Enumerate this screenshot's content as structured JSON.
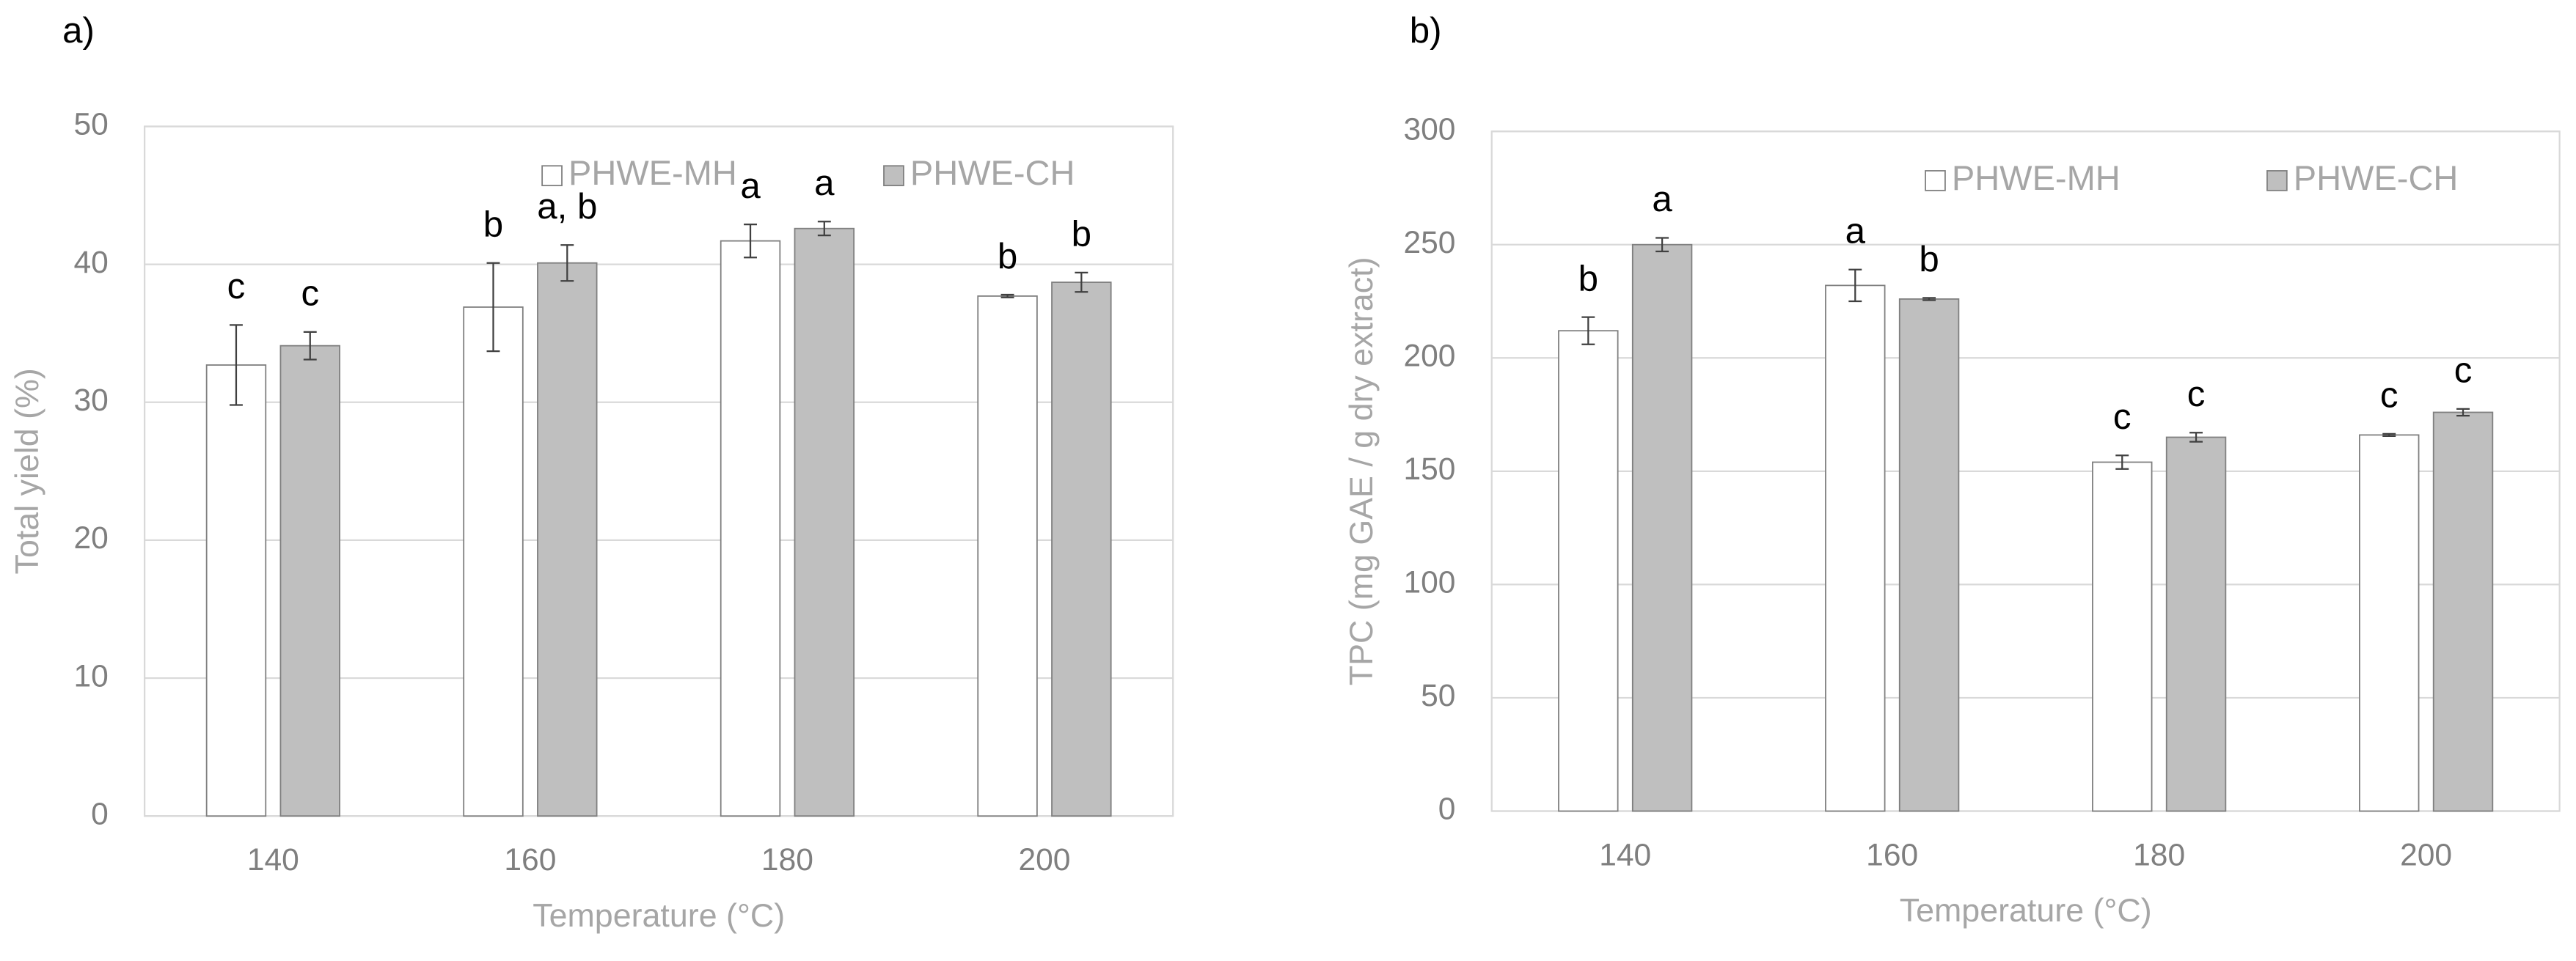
{
  "chart_data": [
    {
      "type": "bar",
      "label": "a)",
      "xlabel": "Temperature (°C)",
      "ylabel": "Total yield (%)",
      "categories": [
        "140",
        "160",
        "180",
        "200"
      ],
      "series": [
        {
          "name": "PHWE-MH",
          "color": "#ffffff",
          "values": [
            32.7,
            36.9,
            41.7,
            37.7
          ],
          "errors": [
            2.9,
            3.2,
            1.2,
            0.1
          ],
          "annotations": [
            "c",
            "b",
            "a",
            "b"
          ]
        },
        {
          "name": "PHWE-CH",
          "color": "#bfbfbf",
          "values": [
            34.1,
            40.1,
            42.6,
            38.7
          ],
          "errors": [
            1.0,
            1.3,
            0.5,
            0.7
          ],
          "annotations": [
            "c",
            "a, b",
            "a",
            "b"
          ]
        }
      ],
      "ylim": [
        0,
        50
      ],
      "yticks": [
        0,
        10,
        20,
        30,
        40,
        50
      ],
      "grid": true,
      "legend": "top"
    },
    {
      "type": "bar",
      "label": "b)",
      "xlabel": "Temperature (°C)",
      "ylabel": "TPC (mg GAE / g dry extract)",
      "categories": [
        "140",
        "160",
        "180",
        "200"
      ],
      "series": [
        {
          "name": "PHWE-MH",
          "color": "#ffffff",
          "values": [
            212,
            232,
            154,
            166
          ],
          "errors": [
            6,
            7,
            3,
            0.5
          ],
          "annotations": [
            "b",
            "a",
            "c",
            "c"
          ]
        },
        {
          "name": "PHWE-CH",
          "color": "#bfbfbf",
          "values": [
            250,
            226,
            165,
            176
          ],
          "errors": [
            3,
            0.5,
            2,
            1.5
          ],
          "annotations": [
            "a",
            "b",
            "c",
            "c"
          ]
        }
      ],
      "ylim": [
        0,
        300
      ],
      "yticks": [
        0,
        50,
        100,
        150,
        200,
        250,
        300
      ],
      "grid": true,
      "legend": "top"
    }
  ]
}
